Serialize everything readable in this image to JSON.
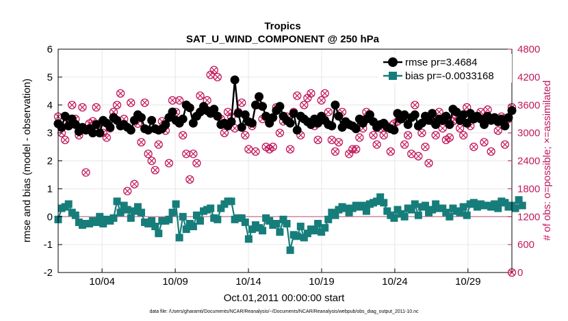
{
  "chart_data": {
    "type": "line",
    "title": "Tropics",
    "subtitle": "SAT_U_WIND_COMPONENT @ 250 hPa",
    "xlabel": "Oct.01,2011 00:00:00 start",
    "ylabel": "rmse and bias (model - observation)",
    "ylabel_right": "# of obs: o=possible; ×=assimilated",
    "footer": "data file: /Users/gharamti/Documents/NCAR/Reanalysis/~/Documents/NCAR/Reanalysis/webpub/obs_diag_output_2011-10.nc",
    "x_tick_labels": [
      "10/04",
      "10/09",
      "10/14",
      "10/19",
      "10/24",
      "10/29"
    ],
    "x_ticks": [
      4,
      9,
      14,
      19,
      24,
      29
    ],
    "xlim": [
      1,
      32
    ],
    "ylim": [
      -2,
      6
    ],
    "y_ticks": [
      -2,
      -1,
      0,
      1,
      2,
      3,
      4,
      5,
      6
    ],
    "ylim_right": [
      0,
      4800
    ],
    "y_ticks_right": [
      0,
      600,
      1200,
      1800,
      2400,
      3000,
      3600,
      4200,
      4800
    ],
    "legend_position": "top-right",
    "colors": {
      "rmse": "#000000",
      "bias": "#167d7a",
      "obs": "#c2185b",
      "zero_line": "#c88aa0",
      "grid": "#e6e6e6"
    },
    "series": [
      {
        "name": "rmse",
        "legend_label": "rmse pr=3.4684",
        "marker": "circle",
        "values": [
          3.33,
          3.2,
          3.6,
          3.25,
          3.5,
          3.3,
          3.05,
          3.2,
          3.1,
          3.15,
          3.0,
          3.3,
          3.0,
          3.45,
          3.35,
          3.2,
          3.55,
          3.45,
          3.25,
          3.3,
          3.2,
          3.1,
          3.45,
          3.65,
          3.55,
          3.15,
          3.1,
          3.45,
          3.15,
          3.1,
          3.15,
          3.3,
          3.55,
          3.75,
          3.45,
          3.35,
          3.5,
          4.0,
          3.9,
          3.35,
          3.6,
          3.75,
          3.95,
          3.8,
          3.7,
          3.85,
          3.6,
          3.3,
          3.35,
          3.25,
          3.4,
          4.9,
          3.7,
          3.2,
          3.65,
          3.4,
          3.35,
          4.0,
          4.3,
          3.95,
          3.6,
          3.35,
          3.55,
          3.8,
          3.95,
          3.6,
          3.45,
          3.35,
          3.7,
          3.1,
          3.6,
          3.5,
          3.4,
          3.3,
          3.5,
          3.35,
          3.6,
          3.45,
          3.3,
          3.25,
          4.0,
          3.6,
          3.2,
          3.4,
          3.3,
          3.25,
          3.15,
          3.5,
          3.35,
          3.5,
          3.65,
          3.4,
          3.2,
          3.3,
          3.35,
          3.2,
          3.15,
          3.1,
          3.7,
          3.5,
          3.65,
          3.3,
          3.55,
          3.65,
          3.25,
          3.35,
          3.6,
          3.45,
          3.7,
          3.3,
          3.5,
          3.45,
          3.6,
          3.3,
          3.85,
          3.75,
          3.45,
          3.65,
          3.35,
          3.7,
          3.5,
          3.6,
          3.5,
          3.3,
          3.6,
          3.45,
          3.55,
          3.4,
          3.5,
          3.25,
          3.55,
          3.8
        ]
      },
      {
        "name": "bias",
        "legend_label": "bias pr=-0.0033168",
        "marker": "square",
        "values": [
          -0.1,
          0.3,
          0.35,
          0.45,
          0.15,
          0.05,
          -0.2,
          -0.3,
          -0.25,
          -0.25,
          -0.15,
          -0.2,
          0.0,
          -0.25,
          -0.1,
          -0.15,
          -0.05,
          0.55,
          0.15,
          0.4,
          0.25,
          -0.05,
          0.2,
          0.35,
          0.15,
          -0.2,
          -0.25,
          -0.15,
          -0.35,
          -0.6,
          -0.15,
          -0.15,
          -0.1,
          0.15,
          0.45,
          -0.75,
          0.0,
          -0.45,
          -0.25,
          -0.35,
          0.05,
          -0.15,
          0.2,
          0.25,
          0.3,
          -0.05,
          -0.1,
          0.3,
          0.45,
          0.55,
          0.55,
          -0.1,
          -0.05,
          -0.05,
          -0.2,
          -0.8,
          -0.45,
          -0.3,
          -0.4,
          -0.5,
          -0.05,
          -0.15,
          -0.3,
          -0.25,
          -0.55,
          -0.1,
          -0.25,
          -1.2,
          -0.65,
          -0.7,
          -0.35,
          -0.75,
          -0.6,
          -0.45,
          -0.5,
          -0.25,
          -0.55,
          -0.4,
          -0.1,
          0.15,
          0.05,
          0.25,
          0.35,
          0.3,
          0.15,
          0.3,
          0.4,
          0.35,
          0.4,
          0.2,
          0.45,
          0.5,
          0.55,
          0.7,
          0.5,
          0.2,
          0.05,
          -0.05,
          0.25,
          0.1,
          0.0,
          0.3,
          0.25,
          0.45,
          0.05,
          0.35,
          0.4,
          0.15,
          0.25,
          0.45,
          0.3,
          0.3,
          0.15,
          0.0,
          0.3,
          0.2,
          0.15,
          0.35,
          0.05,
          0.45,
          0.5,
          0.35,
          0.45,
          0.4,
          0.4,
          0.35,
          0.45,
          0.3,
          0.55,
          0.5,
          0.35,
          0.4,
          0.3,
          0.6,
          0.4
        ]
      },
      {
        "name": "obs_possible",
        "marker": "circle-open",
        "axis": "right",
        "values": [
          3350,
          3000,
          2850,
          3300,
          3600,
          3300,
          2950,
          3550,
          2150,
          3200,
          3250,
          3550,
          3200,
          3000,
          2900,
          3100,
          3450,
          3600,
          3850,
          3300,
          1750,
          3650,
          1900,
          3200,
          2800,
          3650,
          2550,
          2400,
          2200,
          2750,
          3250,
          3050,
          2350,
          3700,
          3450,
          3700,
          2950,
          2550,
          2000,
          2550,
          2350,
          3800,
          3500,
          3700,
          4250,
          4350,
          4200,
          3300,
          3000,
          3450,
          3350,
          3100,
          3450,
          3650,
          2950,
          2650,
          3150,
          2600,
          3600,
          3300,
          2700,
          2650,
          2700,
          3550,
          3000,
          3250,
          3350,
          2650,
          3450,
          3800,
          2950,
          3600,
          3750,
          3850,
          3150,
          2850,
          3700,
          3850,
          3450,
          2850,
          2600,
          2800,
          3450,
          3250,
          2550,
          2650,
          2650,
          2900,
          3100,
          3450,
          3300,
          2950,
          2750,
          3100,
          2950,
          3150,
          2600,
          3200,
          3250,
          3300,
          2750,
          2950,
          2550,
          3600,
          2500,
          3000,
          2700,
          2350,
          3250,
          2950,
          3450,
          3100,
          2850,
          2900,
          3250,
          3350,
          3100,
          2950,
          3550,
          3150,
          2700,
          3350,
          3450,
          2800,
          3500,
          2600,
          3300,
          3050,
          3350,
          2750,
          3300,
          3550
        ]
      },
      {
        "name": "obs_assimilated",
        "marker": "cross",
        "axis": "right",
        "values": [
          3350,
          3000,
          2850,
          3300,
          3600,
          3300,
          2950,
          3550,
          2150,
          3200,
          3250,
          3550,
          3200,
          3000,
          2900,
          3100,
          3450,
          3600,
          3850,
          3300,
          1750,
          3650,
          1900,
          3200,
          2800,
          3650,
          2550,
          2400,
          2200,
          2750,
          3250,
          3050,
          2350,
          3700,
          3450,
          3700,
          2950,
          2550,
          2000,
          2550,
          2350,
          3800,
          3500,
          3700,
          4250,
          4350,
          4200,
          3300,
          3000,
          3450,
          3350,
          3100,
          3450,
          3650,
          2950,
          2650,
          3150,
          2600,
          3600,
          3300,
          2700,
          2650,
          2700,
          3550,
          3000,
          3250,
          3350,
          2650,
          3450,
          3800,
          2950,
          3600,
          3750,
          3850,
          3150,
          2850,
          3700,
          3850,
          3450,
          2850,
          2600,
          2800,
          3450,
          3250,
          2550,
          2650,
          2650,
          2900,
          3100,
          3450,
          3300,
          2950,
          2750,
          3100,
          2950,
          3150,
          2600,
          3200,
          3250,
          3300,
          2750,
          2950,
          2550,
          3600,
          2500,
          3000,
          2700,
          2350,
          3250,
          2950,
          3450,
          3100,
          2850,
          2900,
          3250,
          3350,
          3100,
          2950,
          3550,
          3150,
          2700,
          3350,
          3450,
          2800,
          3500,
          2600,
          3300,
          3050,
          3350,
          2750,
          3300,
          3550
        ]
      }
    ]
  }
}
